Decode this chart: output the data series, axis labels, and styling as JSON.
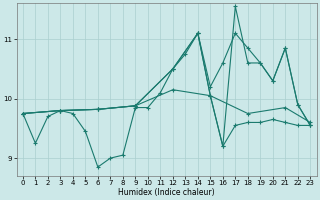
{
  "xlabel": "Humidex (Indice chaleur)",
  "background_color": "#cce8e8",
  "grid_color": "#aacfcf",
  "line_color": "#1a7a6e",
  "xlim": [
    -0.5,
    23.5
  ],
  "ylim": [
    8.7,
    11.6
  ],
  "yticks": [
    9,
    10,
    11
  ],
  "xticks": [
    0,
    1,
    2,
    3,
    4,
    5,
    6,
    7,
    8,
    9,
    10,
    11,
    12,
    13,
    14,
    15,
    16,
    17,
    18,
    19,
    20,
    21,
    22,
    23
  ],
  "series": [
    {
      "x": [
        0,
        3,
        6,
        9,
        12,
        15,
        18,
        21,
        23
      ],
      "y": [
        9.75,
        9.8,
        9.82,
        9.88,
        10.15,
        10.05,
        9.75,
        9.85,
        9.6
      ]
    },
    {
      "x": [
        0,
        1,
        2,
        3,
        4,
        5,
        6,
        7,
        8,
        9,
        10,
        11,
        12,
        13,
        14,
        15,
        16,
        17,
        18,
        19,
        20,
        21,
        22,
        23
      ],
      "y": [
        9.75,
        9.25,
        9.7,
        9.8,
        9.75,
        9.45,
        8.85,
        9.0,
        9.05,
        9.85,
        9.85,
        10.1,
        10.5,
        10.75,
        11.1,
        10.05,
        9.2,
        9.55,
        9.6,
        9.6,
        9.65,
        9.6,
        9.55,
        9.55
      ]
    },
    {
      "x": [
        0,
        3,
        6,
        9,
        12,
        14,
        15,
        16,
        17,
        18,
        19,
        20,
        21,
        22,
        23
      ],
      "y": [
        9.75,
        9.8,
        9.82,
        9.88,
        10.5,
        11.1,
        10.05,
        9.2,
        11.55,
        10.6,
        10.6,
        10.3,
        10.85,
        9.9,
        9.55
      ]
    },
    {
      "x": [
        0,
        3,
        6,
        9,
        12,
        14,
        15,
        16,
        17,
        18,
        19,
        20,
        21,
        22,
        23
      ],
      "y": [
        9.75,
        9.8,
        9.82,
        9.88,
        10.5,
        11.1,
        10.2,
        10.6,
        11.1,
        10.85,
        10.6,
        10.3,
        10.85,
        9.9,
        9.55
      ]
    }
  ]
}
